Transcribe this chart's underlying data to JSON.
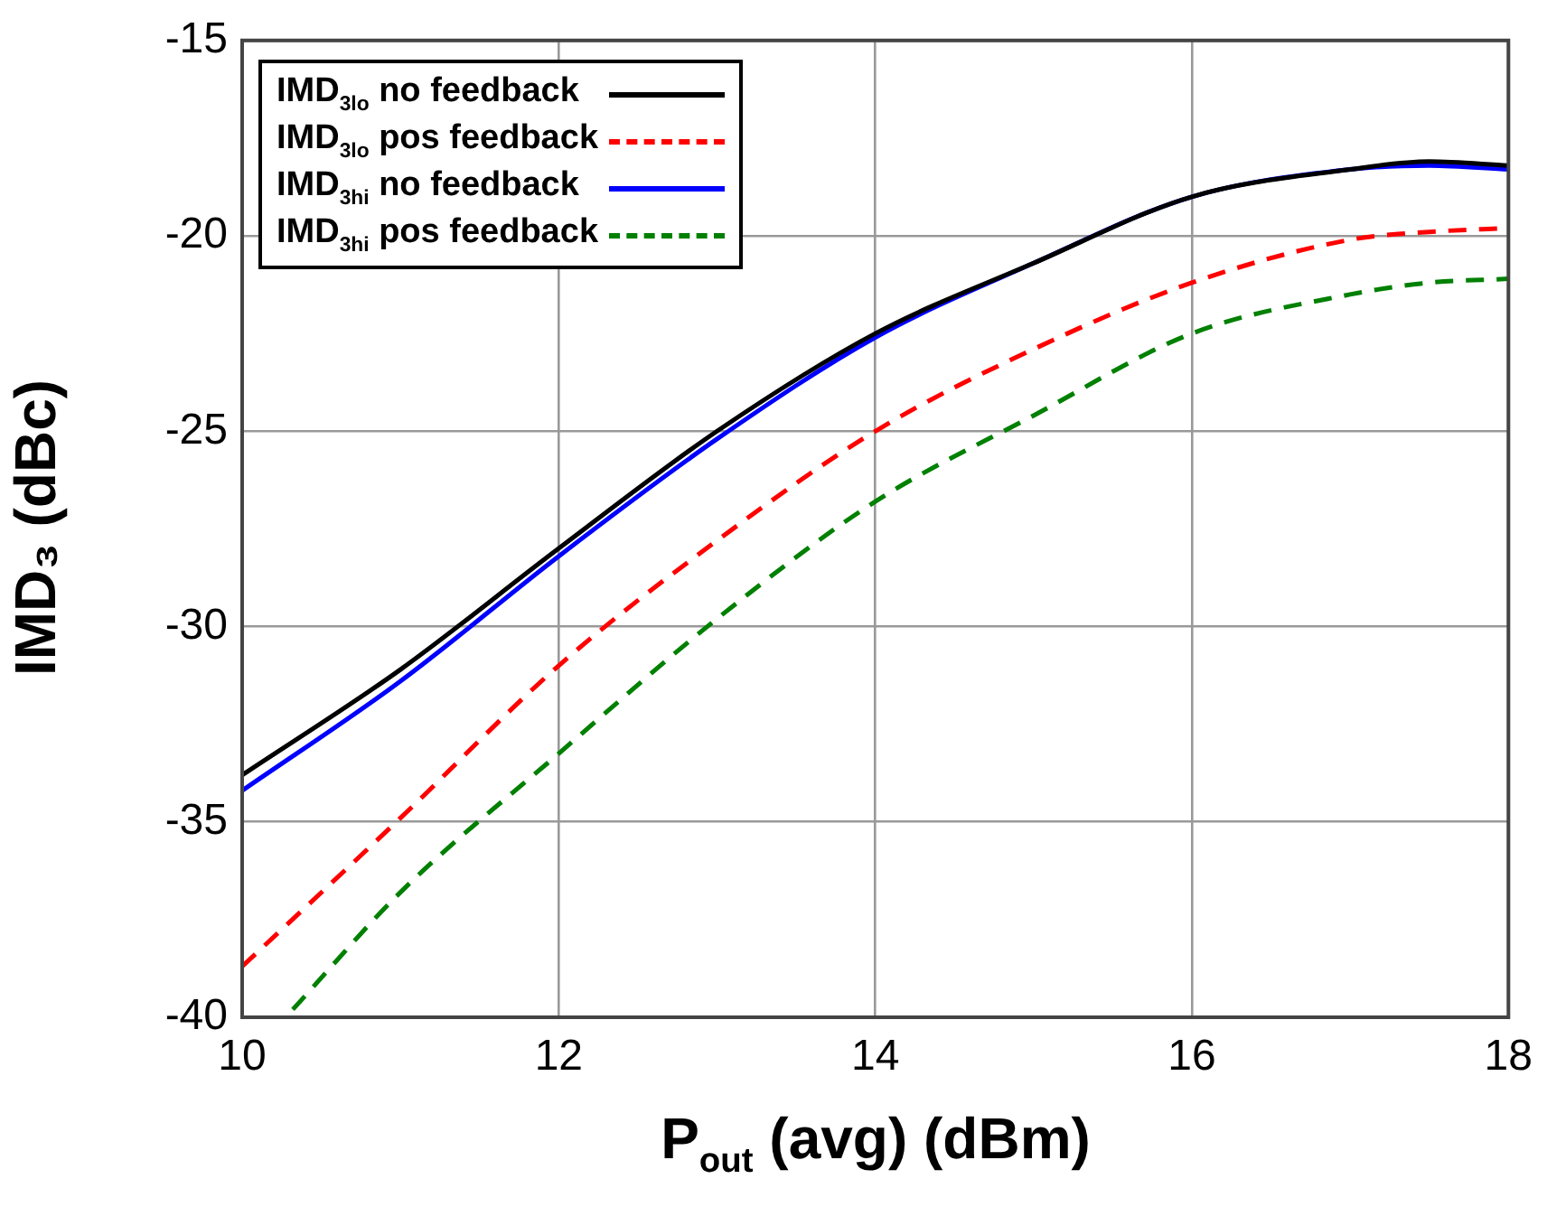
{
  "chart_data": {
    "type": "line",
    "xlabel": "P$_{out}$ (avg) (dBm)",
    "ylabel": "IMD₃ (dBc)",
    "x": [
      10,
      11,
      12,
      13,
      14,
      15,
      16,
      17,
      17.5,
      18
    ],
    "series": [
      {
        "name": "IMD$_{3lo}$ no feedback",
        "color": "#000000",
        "line_style": "solid",
        "values": [
          -33.8,
          -31.1,
          -28.0,
          -25.0,
          -22.5,
          -20.7,
          -19.0,
          -18.3,
          -18.1,
          -18.2
        ]
      },
      {
        "name": "IMD$_{3lo}$ pos feedback",
        "color": "#ff0000",
        "line_style": "dashed",
        "values": [
          -38.7,
          -34.9,
          -31.0,
          -27.8,
          -25.0,
          -22.9,
          -21.2,
          -20.1,
          -19.9,
          -19.8
        ]
      },
      {
        "name": "IMD$_{3hi}$ no feedback",
        "color": "#0000ff",
        "line_style": "solid",
        "values": [
          -34.2,
          -31.4,
          -28.2,
          -25.2,
          -22.6,
          -20.7,
          -19.0,
          -18.3,
          -18.2,
          -18.3
        ]
      },
      {
        "name": "IMD$_{3hi}$ pos feedback",
        "color": "#008000",
        "line_style": "dashed",
        "x": [
          10.32,
          11,
          12,
          13,
          14,
          15,
          16,
          17,
          17.5,
          18
        ],
        "values": [
          -39.8,
          -36.8,
          -33.25,
          -29.8,
          -26.8,
          -24.6,
          -22.5,
          -21.5,
          -21.2,
          -21.1
        ]
      }
    ],
    "xlim": [
      10,
      18
    ],
    "xticks": [
      10,
      12,
      14,
      16,
      18
    ],
    "ylim": [
      -40,
      -15
    ],
    "yticks": [
      -40,
      -35,
      -30,
      -25,
      -20,
      -15
    ],
    "grid": true,
    "legend": "top left",
    "marker": "none"
  }
}
